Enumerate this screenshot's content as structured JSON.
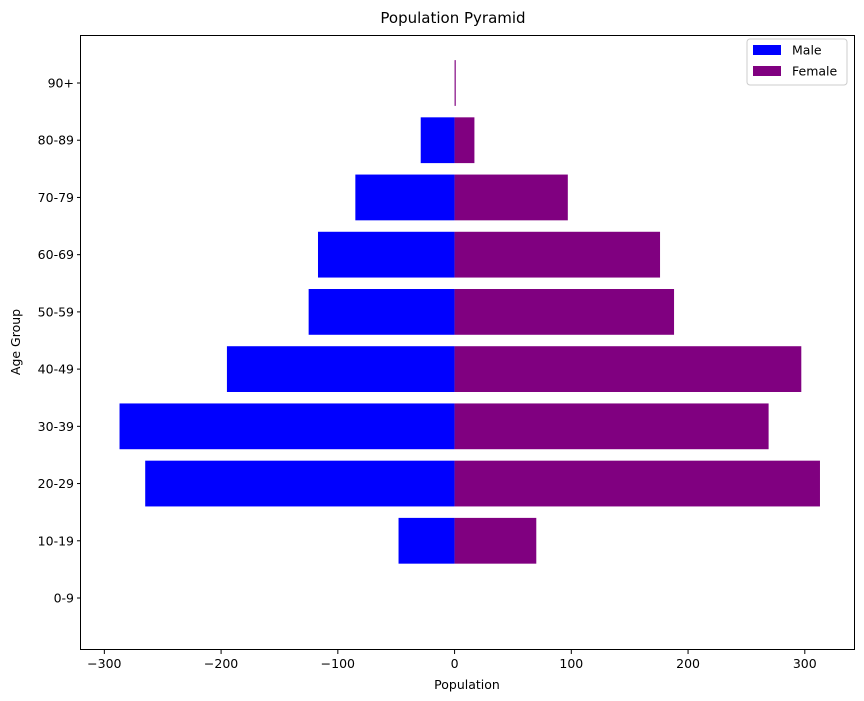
{
  "chart_data": {
    "type": "bar",
    "orientation": "horizontal",
    "title": "Population Pyramid",
    "xlabel": "Population",
    "ylabel": "Age Group",
    "categories": [
      "0-9",
      "10-19",
      "20-29",
      "30-39",
      "40-49",
      "50-59",
      "60-69",
      "70-79",
      "80-89",
      "90+"
    ],
    "series": [
      {
        "name": "Male",
        "color": "#0000ff",
        "values": [
          0,
          -48,
          -265,
          -287,
          -195,
          -125,
          -117,
          -85,
          -29,
          0
        ]
      },
      {
        "name": "Female",
        "color": "#800080",
        "values": [
          0,
          70,
          313,
          269,
          297,
          188,
          176,
          97,
          17,
          1
        ]
      }
    ],
    "xlim": [
      -320,
      343
    ],
    "xticks": [
      -300,
      -200,
      -100,
      0,
      100,
      200,
      300
    ],
    "xtick_labels": [
      "−300",
      "−200",
      "−100",
      "0",
      "100",
      "200",
      "300"
    ],
    "grid": false,
    "legend_position": "top-right"
  }
}
